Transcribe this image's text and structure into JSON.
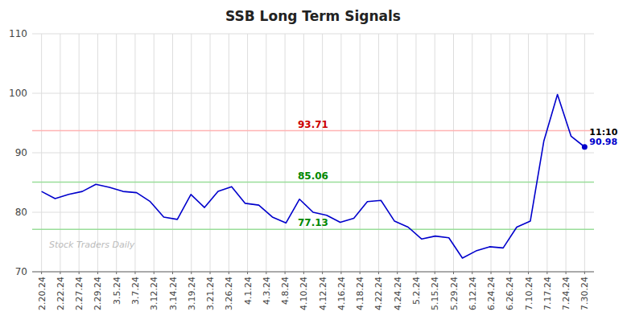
{
  "chart_data": {
    "type": "line",
    "title": "SSB Long Term Signals",
    "color": "#0000cc",
    "marker": "end-dot",
    "grid": true,
    "xlim": [
      -0.5,
      29.5
    ],
    "xticks": [
      {
        "value": 0,
        "label": "2.20.24"
      },
      {
        "value": 1,
        "label": "2.22.24"
      },
      {
        "value": 2,
        "label": "2.27.24"
      },
      {
        "value": 3,
        "label": "2.29.24"
      },
      {
        "value": 4,
        "label": "3.5.24"
      },
      {
        "value": 5,
        "label": "3.7.24"
      },
      {
        "value": 6,
        "label": "3.12.24"
      },
      {
        "value": 7,
        "label": "3.14.24"
      },
      {
        "value": 8,
        "label": "3.19.24"
      },
      {
        "value": 9,
        "label": "3.21.24"
      },
      {
        "value": 10,
        "label": "3.26.24"
      },
      {
        "value": 11,
        "label": "4.1.24"
      },
      {
        "value": 12,
        "label": "4.3.24"
      },
      {
        "value": 13,
        "label": "4.8.24"
      },
      {
        "value": 14,
        "label": "4.10.24"
      },
      {
        "value": 15,
        "label": "4.12.24"
      },
      {
        "value": 16,
        "label": "4.16.24"
      },
      {
        "value": 17,
        "label": "4.18.24"
      },
      {
        "value": 18,
        "label": "4.22.24"
      },
      {
        "value": 19,
        "label": "4.24.24"
      },
      {
        "value": 20,
        "label": "5.2.24"
      },
      {
        "value": 21,
        "label": "5.15.24"
      },
      {
        "value": 22,
        "label": "5.29.24"
      },
      {
        "value": 23,
        "label": "6.12.24"
      },
      {
        "value": 24,
        "label": "6.24.24"
      },
      {
        "value": 25,
        "label": "6.26.24"
      },
      {
        "value": 26,
        "label": "7.10.24"
      },
      {
        "value": 27,
        "label": "7.17.24"
      },
      {
        "value": 28,
        "label": "7.24.24"
      },
      {
        "value": 29,
        "label": "7.30.24"
      }
    ],
    "ylim": [
      70,
      110
    ],
    "yticks": [
      70,
      80,
      90,
      100,
      110
    ],
    "x": [
      0,
      0.725,
      1.45,
      2.175,
      2.9,
      3.625,
      4.35,
      5.075,
      5.8,
      6.525,
      7.25,
      7.975,
      8.7,
      9.425,
      10.15,
      10.875,
      11.6,
      12.325,
      13.05,
      13.775,
      14.5,
      15.225,
      15.95,
      16.675,
      17.4,
      18.125,
      18.85,
      19.575,
      20.3,
      21.025,
      21.75,
      22.475,
      23.2,
      23.925,
      24.65,
      25.375,
      26.1,
      26.825,
      27.55,
      28.275,
      29
    ],
    "values": [
      83.5,
      82.3,
      83.0,
      83.5,
      84.7,
      84.2,
      83.5,
      83.3,
      81.8,
      79.2,
      78.8,
      83.0,
      80.8,
      83.5,
      84.3,
      81.5,
      81.2,
      79.2,
      78.2,
      82.2,
      80.0,
      79.5,
      78.3,
      79.0,
      81.8,
      82.0,
      78.5,
      77.5,
      75.5,
      76.0,
      75.7,
      72.3,
      73.5,
      74.2,
      74.0,
      77.5,
      78.5,
      92.0,
      99.8,
      92.8,
      90.98
    ],
    "hlines": [
      {
        "value": 93.71,
        "color": "#ffb3b3",
        "label_color": "#cc0000"
      },
      {
        "value": 85.06,
        "color": "#99dd99",
        "label_color": "#008800"
      },
      {
        "value": 77.13,
        "color": "#99dd99",
        "label_color": "#008800"
      }
    ],
    "annotations": [
      {
        "text": "11:10",
        "color": "#000000"
      },
      {
        "text": "90.98",
        "color": "#0000cc"
      }
    ],
    "watermark": "Stock Traders Daily"
  }
}
